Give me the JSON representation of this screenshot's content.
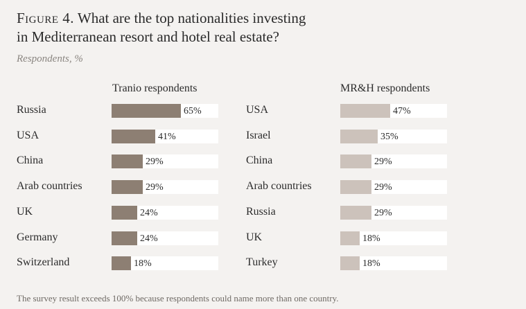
{
  "figure": {
    "label": "Figure 4.",
    "question_line1": " What are the top nationalities investing",
    "question_line2": "in Mediterranean resort and hotel real estate?",
    "subtitle": "Respondents, %",
    "footnote": "The survey result exceeds 100% because respondents could name more than one country."
  },
  "colors": {
    "background": "#f4f2f0",
    "tranio_bar": "#8d7f73",
    "mrh_bar": "#ccc2bb",
    "track": "#ffffff"
  },
  "chart_data": [
    {
      "type": "bar",
      "orientation": "horizontal",
      "title": "Tranio respondents",
      "unit": "%",
      "xlim": [
        0,
        100
      ],
      "categories": [
        "Russia",
        "USA",
        "China",
        "Arab countries",
        "UK",
        "Germany",
        "Switzerland"
      ],
      "values": [
        65,
        41,
        29,
        29,
        24,
        24,
        18
      ],
      "labels": [
        "65%",
        "41%",
        "29%",
        "29%",
        "24%",
        "24%",
        "18%"
      ]
    },
    {
      "type": "bar",
      "orientation": "horizontal",
      "title": "MR&H respondents",
      "unit": "%",
      "xlim": [
        0,
        100
      ],
      "categories": [
        "USA",
        "Israel",
        "China",
        "Arab countries",
        "Russia",
        "UK",
        "Turkey"
      ],
      "values": [
        47,
        35,
        29,
        29,
        29,
        18,
        18
      ],
      "labels": [
        "47%",
        "35%",
        "29%",
        "29%",
        "29%",
        "18%",
        "18%"
      ]
    }
  ]
}
